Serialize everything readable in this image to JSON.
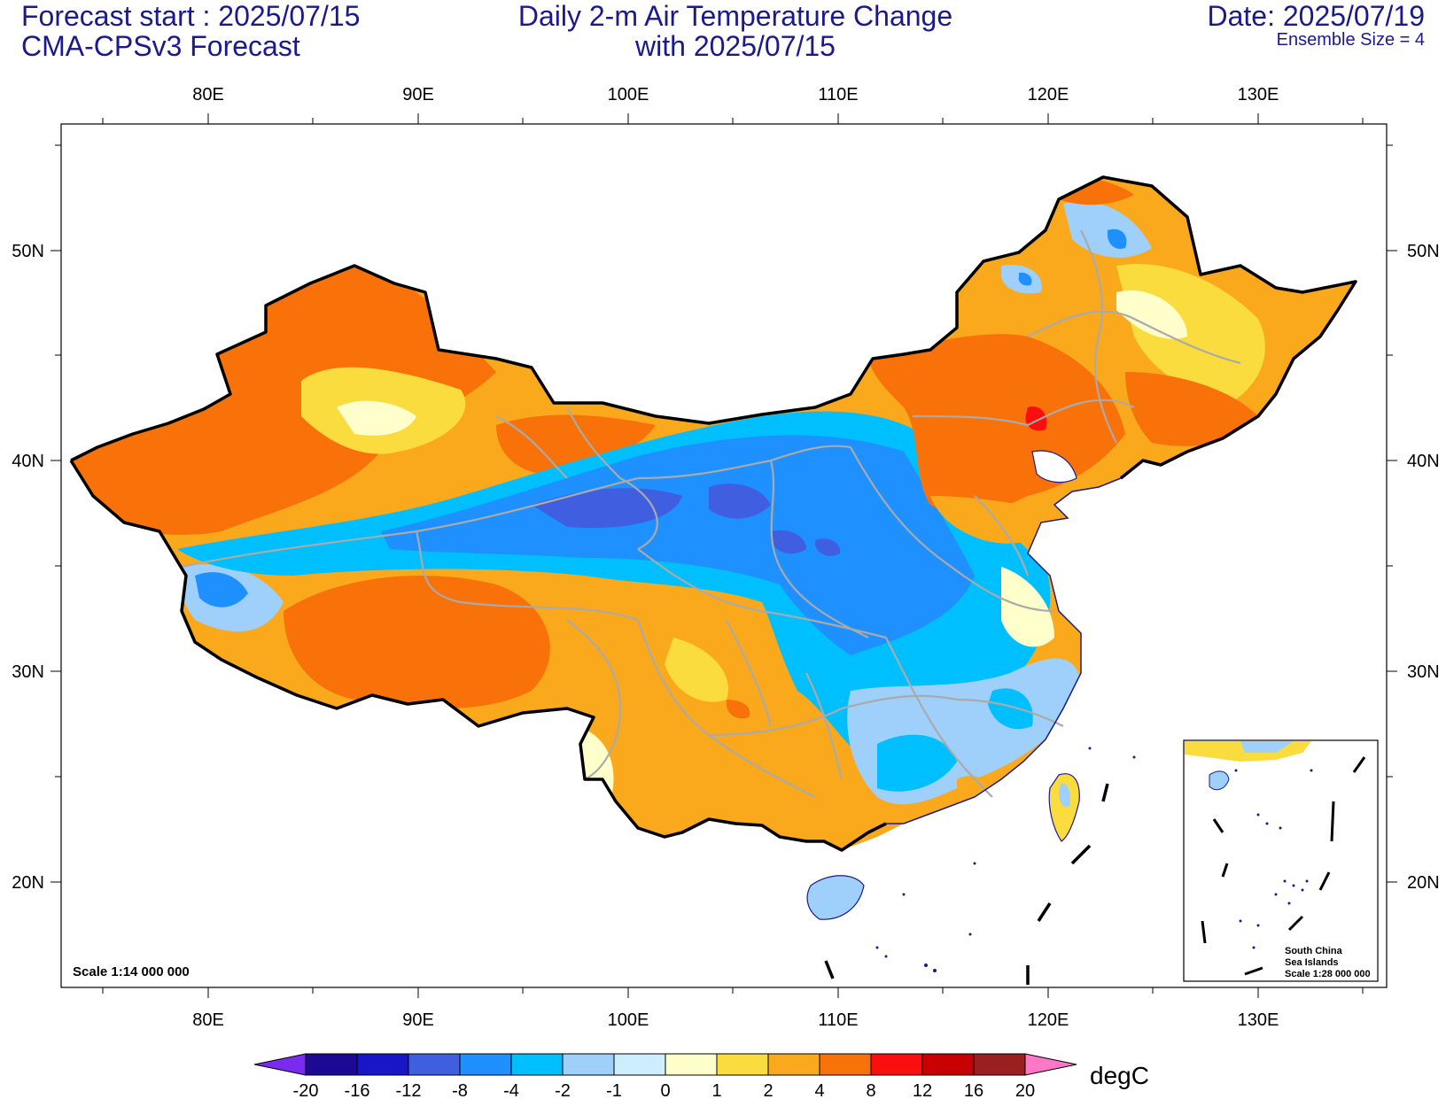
{
  "header": {
    "left_line1": "Forecast start : 2025/07/15",
    "left_line2": "CMA-CPSv3 Forecast",
    "center_line1": "Daily 2-m Air Temperature Change",
    "center_line2": "with 2025/07/15",
    "right_line1": "Date: 2025/07/19",
    "right_line2": "Ensemble Size = 4"
  },
  "map": {
    "lon_ticks": [
      "80E",
      "90E",
      "100E",
      "110E",
      "120E",
      "130E"
    ],
    "lat_ticks": [
      "50N",
      "40N",
      "30N",
      "20N"
    ],
    "scale_label": "Scale 1:14 000 000",
    "inset": {
      "line1": "South China",
      "line2": "Sea Islands",
      "line3": "Scale 1:28 000 000"
    }
  },
  "colorbar": {
    "unit": "degC",
    "labels": [
      "-20",
      "-16",
      "-12",
      "-8",
      "-4",
      "-2",
      "-1",
      "0",
      "1",
      "2",
      "4",
      "8",
      "12",
      "16",
      "20"
    ],
    "colors": [
      "#1c0a94",
      "#1717c8",
      "#3f5fe0",
      "#1e90ff",
      "#00bfff",
      "#9ed0fb",
      "#cdeffd",
      "#ffffcc",
      "#fbdc3f",
      "#fba91c",
      "#f87209",
      "#fa0e0e",
      "#c80000",
      "#9a2020"
    ],
    "low_color": "#7b2af0",
    "high_color": "#ff78c8"
  }
}
